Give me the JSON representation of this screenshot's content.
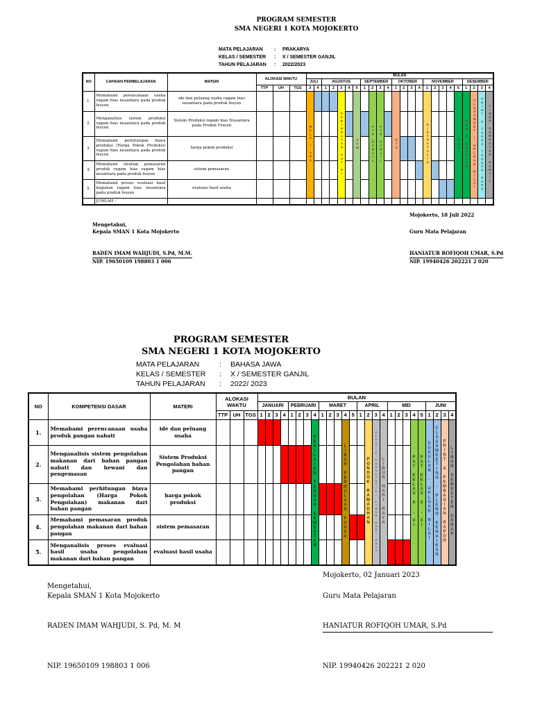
{
  "page1": {
    "title": "PROGRAM SEMESTER",
    "subtitle": "SMA NEGERI 1 KOTA MOJOKERTO",
    "meta": [
      {
        "label": "MATA PELAJARAN",
        "sep": ":",
        "value": "PRAKARYA"
      },
      {
        "label": "KELAS / SEMESTER",
        "sep": ":",
        "value": "X / SEMESTER GANJIL"
      },
      {
        "label": "TAHUN PELAJARAN",
        "sep": ":",
        "value": "2022/2023"
      }
    ],
    "table": {
      "headers": {
        "no": "NO",
        "kd": "CAPAIAN PEMBELAJARAN",
        "materi": "MATERI",
        "alokasi": "ALOKASI WAKTU",
        "alokasi_cols": [
          "TTP",
          "UH",
          "TGS"
        ],
        "bulan": "BULAN"
      },
      "months": [
        {
          "name": "JULI",
          "weeks": [
            "3",
            "4"
          ]
        },
        {
          "name": "AGUSTUS",
          "weeks": [
            "1",
            "2",
            "3",
            "4",
            "5"
          ]
        },
        {
          "name": "SEPTEMBER",
          "weeks": [
            "1",
            "2",
            "3",
            "4"
          ]
        },
        {
          "name": "OKTOBER",
          "weeks": [
            "1",
            "2",
            "3",
            "4"
          ]
        },
        {
          "name": "NOVEMBER",
          "weeks": [
            "1",
            "2",
            "3",
            "4",
            "5"
          ]
        },
        {
          "name": "DESEMBER",
          "weeks": [
            "1",
            "2",
            "3",
            "4"
          ]
        }
      ],
      "mark_color": "#9DC3E6",
      "rows": [
        {
          "no": "1.",
          "kd": "Memahami perencanaan usaha ragam hias nusantara pada produk fesyen",
          "materi": "ide dan peluang usaha ragam hias nusantara pada produk fesyen",
          "marks": [
            1,
            2,
            3
          ]
        },
        {
          "no": "2.",
          "kd": "Menganalisis sistem produksi ragam hias nusantara pada produk fesyen",
          "materi": "Sistem Produksi ragam hias Nusantara pada Produk Fesyen",
          "marks": [
            5,
            7,
            10
          ]
        },
        {
          "no": "3.",
          "kd": "Memahami perhitungan biaya produksi (Harga Pokok Produksi) ragam hias nusantara pada produk fesyen",
          "materi": "harga pokok produksi",
          "marks": [
            12,
            13
          ]
        },
        {
          "no": "4.",
          "kd": "Memahami strategi pemasaran produk ragam hias ragam hias nusantara pada produk fesyen",
          "materi": "sistem pemasaran",
          "marks": [
            14,
            16
          ]
        },
        {
          "no": "5.",
          "kd": "Memahami proses evaluasi hasil kegiatan ragam hias nusantara pada produk fesyen",
          "materi": "evaluasi hasil usaha",
          "marks": [
            17,
            18
          ]
        }
      ],
      "bands": [
        {
          "week": 0,
          "bg": "#FFB000",
          "fg": "#7B3F00",
          "text": "MPLS / TPA"
        },
        {
          "week": 4,
          "bg": "#FFFF00",
          "fg": "#9C3D00",
          "text": "PERINGATAN HUT RI"
        },
        {
          "week": 6,
          "bg": "#A9D08E",
          "fg": "#7B3F00",
          "text": "AKM"
        },
        {
          "week": 8,
          "bg": "#92D050",
          "fg": "#375623",
          "text": "PTS GANJIL"
        },
        {
          "week": 9,
          "bg": "#92D050",
          "fg": "#375623",
          "text": "PTS GANJIL"
        },
        {
          "week": 11,
          "bg": "#F4B183",
          "fg": "#843C0C",
          "text": "KTS"
        },
        {
          "week": 15,
          "bg": "#FFD966",
          "fg": "#9C3D00",
          "text": "DIESNATALIS"
        },
        {
          "week": 19,
          "bg": "#00B050",
          "fg": "#7B2D26",
          "text": "PAS"
        },
        {
          "week": 20,
          "bg": "#00B050",
          "fg": "#7B2D26",
          "text": "PAS / SUSULAN"
        },
        {
          "week": 21,
          "bg": "#F4B183",
          "fg": "#843C0C",
          "text": "CLASSMEET / UPLOAD NILAI"
        },
        {
          "week": 22,
          "bg": "#9DE8EE",
          "fg": "#1F6E64",
          "text": "PRINT & TANDA TANGAN RAPO"
        },
        {
          "week": 23,
          "bg": "#A6A6A6",
          "fg": "#404040",
          "text": "LIBUR SEMESTER GANJIL"
        }
      ],
      "jumlah": "JUMLAH :"
    },
    "sign": {
      "place_date": "Mojokerto, 18 Juli 2022",
      "left1": "Mengetahui,",
      "left2": "Kepala SMAN 1 Kota Mojokerto",
      "right_role": "Guru Mata Pelajaran",
      "left_name": "RADEN IMAM WAHJUDI, S.Pd, M.M.",
      "left_nip": "NIP. 19650109 198803 1 006",
      "right_name": "HANIATUR ROFIQOH UMAR, S.Pd",
      "right_nip": "NIP. 19940426 202221 2 020"
    }
  },
  "page2": {
    "title": "PROGRAM SEMESTER",
    "subtitle": "SMA NEGERI 1 KOTA MOJOKERTO",
    "meta": [
      {
        "label": "MATA PELAJARAN",
        "sep": ":",
        "value": "BAHASA JAWA"
      },
      {
        "label": "KELAS / SEMESTER",
        "sep": ":",
        "value": "X / SEMESTER GANJIL"
      },
      {
        "label": "TAHUN PELAJARAN",
        "sep": ":",
        "value": "2022/ 2023"
      }
    ],
    "table": {
      "headers": {
        "no": "NO",
        "kd": "KOMPETENSI DASAR",
        "materi": "MATERI",
        "alokasi": "ALOKASI WAKTU",
        "alokasi_cols": [
          "TTP",
          "UH",
          "TGS"
        ],
        "bulan": "BULAN"
      },
      "months": [
        {
          "name": "JANUARI",
          "weeks": [
            "1",
            "2",
            "3",
            "4"
          ]
        },
        {
          "name": "PEBRUARI",
          "weeks": [
            "1",
            "2",
            "3",
            "4"
          ]
        },
        {
          "name": "MARET",
          "weeks": [
            "1",
            "2",
            "3",
            "4",
            "5"
          ]
        },
        {
          "name": "APRIL",
          "weeks": [
            "1",
            "2",
            "3",
            "4"
          ]
        },
        {
          "name": "MEI",
          "weeks": [
            "1",
            "2",
            "3",
            "4",
            "5"
          ]
        },
        {
          "name": "JUNI",
          "weeks": [
            "1",
            "2",
            "3",
            "4"
          ]
        }
      ],
      "mark_color": "#FF0000",
      "rows": [
        {
          "no": "1.",
          "kd": "Memahami perencanaan usaha produk pangan nabati",
          "materi": "ide dan peluang usaha",
          "marks": [
            0,
            1,
            2
          ]
        },
        {
          "no": "2.",
          "kd": "Menganalisis sistem pengolahan makanan dari bahan pangan nabati dan hewani dan pengemasan",
          "materi": "Sistem Produksi Pengolahan bahan pangan",
          "marks": [
            3,
            4,
            5,
            6
          ]
        },
        {
          "no": "3.",
          "kd": "Memahami perhitungan biaya pengolahan (Harga Pokok Pengolahan) makanan dari bahan pangan",
          "materi": "harga pokok produksi",
          "marks": [
            8,
            9,
            10
          ]
        },
        {
          "no": "4.",
          "kd": "Memahami pemasaran produk pengolahan makanan dari bahan pangan",
          "materi": "sistem pemasaran",
          "marks": [
            12,
            13
          ]
        },
        {
          "no": "5.",
          "kd": "Menganalisis proses evaluasi hasil usaha pengolahan makanan dari bahan pangan",
          "materi": "evaluasi hasil usaha",
          "marks": [
            17,
            18,
            19
          ]
        }
      ],
      "bands": [
        {
          "week": 7,
          "bg": "#00B050",
          "fg": "#0B3D0B",
          "text": "PENILAIAN TENGAH SEMESTER"
        },
        {
          "week": 11,
          "bg": "#BF9000",
          "fg": "#3F3000",
          "text": "LIBUR PERMULAAN PUASA"
        },
        {
          "week": 14,
          "bg": "#FFD966",
          "fg": "#3B2F00",
          "text": "PONDOK RAMADHAN"
        },
        {
          "week": 15,
          "bg": "#BFBFBF",
          "fg": "#595959",
          "text": "EFEKTIF FAKULTATIF/ LIBUR HARI RAYA",
          "small": true
        },
        {
          "week": 16,
          "bg": "#BFBFBF",
          "fg": "#595959",
          "text": "LIBUR HARI RAYA"
        },
        {
          "week": 20,
          "bg": "#92D050",
          "fg": "#2D5016",
          "text": "PAT KELAS X , XI"
        },
        {
          "week": 21,
          "bg": "#92D050",
          "fg": "#2D5016",
          "text": "PAT KELAS X , XI"
        },
        {
          "week": 22,
          "bg": "#9DC3E6",
          "fg": "#1F4E79",
          "text": "SUSULAN - UPLOAD NILAI"
        },
        {
          "week": 23,
          "bg": "#9DC3E6",
          "fg": "#1F4E79",
          "text": "CLASSMEETING - PLENO KENAIKAN"
        },
        {
          "week": 24,
          "bg": "#F8CBAD",
          "fg": "#843C0C",
          "text": "PRINT & PEMBAGIAN RAPOR"
        },
        {
          "week": 25,
          "bg": "#A6A6A6",
          "fg": "#404040",
          "text": "LIBUR SEMESTER GENAP"
        }
      ]
    },
    "sign": {
      "place_date": "Mojokerto, 02 Januari 2023",
      "left1": "Mengetahui,",
      "left2": "Kepala SMAN 1 Kota Mojokerto",
      "right_role": "Guru Mata Pelajaran",
      "left_name": "RADEN IMAM WAHJUDI, S. Pd, M. M",
      "left_nip": "NIP. 19650109 198803 1 006",
      "right_name": "HANIATUR ROFIQOH UMAR, S.Pd",
      "right_nip": "NIP. 19940426 202221 2 020"
    }
  }
}
